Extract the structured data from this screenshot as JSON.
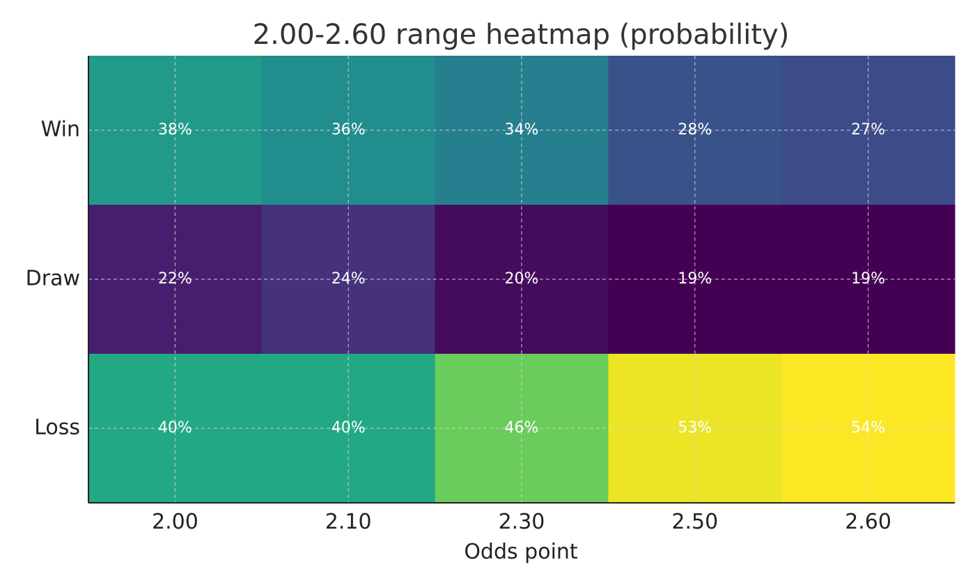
{
  "chart_data": {
    "type": "heatmap",
    "title": "2.00-2.60 range heatmap (probability)",
    "xlabel": "Odds point",
    "ylabel": "",
    "x_categories": [
      "2.00",
      "2.10",
      "2.30",
      "2.50",
      "2.60"
    ],
    "y_categories": [
      "Win",
      "Draw",
      "Loss"
    ],
    "values": [
      [
        38,
        36,
        34,
        28,
        27
      ],
      [
        22,
        24,
        20,
        19,
        19
      ],
      [
        40,
        40,
        46,
        53,
        54
      ]
    ],
    "cell_labels": [
      [
        "38%",
        "36%",
        "34%",
        "28%",
        "27%"
      ],
      [
        "22%",
        "24%",
        "20%",
        "19%",
        "19%"
      ],
      [
        "40%",
        "40%",
        "46%",
        "53%",
        "54%"
      ]
    ],
    "value_unit": "%",
    "colormap": "viridis",
    "grid": true,
    "colorbar": false
  }
}
